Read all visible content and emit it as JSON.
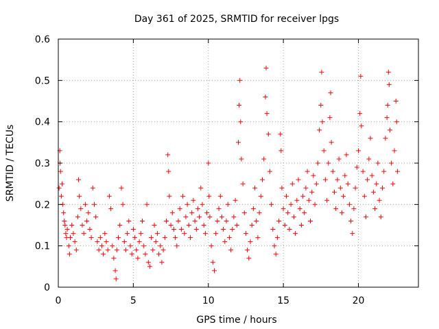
{
  "chart_data": {
    "type": "scatter",
    "title": "Day 361 of 2025, SRMTID for receiver lpgs",
    "xlabel": "GPS time / hours",
    "ylabel": "SRMTID / TECUs",
    "xlim": [
      0,
      24
    ],
    "ylim": [
      0,
      0.6
    ],
    "grid": true,
    "x_ticks": [
      0,
      5,
      10,
      15,
      20
    ],
    "y_ticks": [
      0,
      0.1,
      0.2,
      0.3,
      0.4,
      0.5,
      0.6
    ],
    "x_tick_labels": [
      "0",
      "5",
      "10",
      "15",
      "20"
    ],
    "y_tick_labels": [
      "0",
      "0.1",
      "0.2",
      "0.3",
      "0.4",
      "0.5",
      "0.6"
    ],
    "marker": "+",
    "marker_color": "#ff0000",
    "series": [
      {
        "name": "SRMTID",
        "points": [
          [
            0.05,
            0.24
          ],
          [
            0.1,
            0.33
          ],
          [
            0.12,
            0.3
          ],
          [
            0.15,
            0.28
          ],
          [
            0.2,
            0.22
          ],
          [
            0.25,
            0.25
          ],
          [
            0.3,
            0.2
          ],
          [
            0.35,
            0.18
          ],
          [
            0.4,
            0.16
          ],
          [
            0.45,
            0.15
          ],
          [
            0.5,
            0.13
          ],
          [
            0.55,
            0.12
          ],
          [
            0.6,
            0.14
          ],
          [
            0.7,
            0.1
          ],
          [
            0.75,
            0.08
          ],
          [
            0.8,
            0.12
          ],
          [
            0.9,
            0.15
          ],
          [
            1.0,
            0.13
          ],
          [
            1.1,
            0.11
          ],
          [
            1.2,
            0.09
          ],
          [
            1.3,
            0.17
          ],
          [
            1.35,
            0.26
          ],
          [
            1.4,
            0.22
          ],
          [
            1.5,
            0.19
          ],
          [
            1.6,
            0.15
          ],
          [
            1.7,
            0.13
          ],
          [
            1.8,
            0.2
          ],
          [
            1.9,
            0.16
          ],
          [
            2.0,
            0.18
          ],
          [
            2.1,
            0.14
          ],
          [
            2.2,
            0.12
          ],
          [
            2.3,
            0.24
          ],
          [
            2.4,
            0.2
          ],
          [
            2.5,
            0.17
          ],
          [
            2.6,
            0.11
          ],
          [
            2.7,
            0.09
          ],
          [
            2.8,
            0.12
          ],
          [
            2.9,
            0.1
          ],
          [
            3.0,
            0.08
          ],
          [
            3.1,
            0.13
          ],
          [
            3.2,
            0.11
          ],
          [
            3.3,
            0.09
          ],
          [
            3.4,
            0.22
          ],
          [
            3.5,
            0.19
          ],
          [
            3.6,
            0.1
          ],
          [
            3.7,
            0.07
          ],
          [
            3.8,
            0.04
          ],
          [
            3.85,
            0.02
          ],
          [
            3.9,
            0.09
          ],
          [
            4.0,
            0.12
          ],
          [
            4.1,
            0.15
          ],
          [
            4.2,
            0.24
          ],
          [
            4.3,
            0.2
          ],
          [
            4.4,
            0.11
          ],
          [
            4.5,
            0.09
          ],
          [
            4.6,
            0.13
          ],
          [
            4.7,
            0.16
          ],
          [
            4.8,
            0.1
          ],
          [
            4.9,
            0.08
          ],
          [
            5.0,
            0.14
          ],
          [
            5.1,
            0.12
          ],
          [
            5.2,
            0.09
          ],
          [
            5.3,
            0.07
          ],
          [
            5.4,
            0.11
          ],
          [
            5.5,
            0.13
          ],
          [
            5.6,
            0.16
          ],
          [
            5.7,
            0.1
          ],
          [
            5.8,
            0.08
          ],
          [
            5.9,
            0.2
          ],
          [
            6.0,
            0.06
          ],
          [
            6.1,
            0.05
          ],
          [
            6.2,
            0.12
          ],
          [
            6.3,
            0.09
          ],
          [
            6.4,
            0.15
          ],
          [
            6.5,
            0.11
          ],
          [
            6.6,
            0.13
          ],
          [
            6.7,
            0.08
          ],
          [
            6.8,
            0.1
          ],
          [
            6.9,
            0.06
          ],
          [
            7.0,
            0.09
          ],
          [
            7.1,
            0.12
          ],
          [
            7.2,
            0.16
          ],
          [
            7.3,
            0.32
          ],
          [
            7.35,
            0.28
          ],
          [
            7.4,
            0.22
          ],
          [
            7.5,
            0.15
          ],
          [
            7.6,
            0.18
          ],
          [
            7.7,
            0.14
          ],
          [
            7.8,
            0.12
          ],
          [
            7.9,
            0.1
          ],
          [
            8.0,
            0.16
          ],
          [
            8.1,
            0.19
          ],
          [
            8.2,
            0.14
          ],
          [
            8.3,
            0.22
          ],
          [
            8.4,
            0.13
          ],
          [
            8.5,
            0.17
          ],
          [
            8.6,
            0.2
          ],
          [
            8.7,
            0.15
          ],
          [
            8.8,
            0.12
          ],
          [
            8.9,
            0.18
          ],
          [
            9.0,
            0.21
          ],
          [
            9.1,
            0.16
          ],
          [
            9.2,
            0.14
          ],
          [
            9.3,
            0.19
          ],
          [
            9.4,
            0.17
          ],
          [
            9.5,
            0.24
          ],
          [
            9.6,
            0.2
          ],
          [
            9.7,
            0.15
          ],
          [
            9.8,
            0.13
          ],
          [
            9.9,
            0.18
          ],
          [
            10.0,
            0.3
          ],
          [
            10.05,
            0.22
          ],
          [
            10.1,
            0.17
          ],
          [
            10.2,
            0.1
          ],
          [
            10.3,
            0.06
          ],
          [
            10.4,
            0.04
          ],
          [
            10.5,
            0.13
          ],
          [
            10.6,
            0.16
          ],
          [
            10.7,
            0.19
          ],
          [
            10.8,
            0.22
          ],
          [
            10.9,
            0.17
          ],
          [
            11.0,
            0.14
          ],
          [
            11.1,
            0.11
          ],
          [
            11.2,
            0.16
          ],
          [
            11.3,
            0.2
          ],
          [
            11.4,
            0.12
          ],
          [
            11.5,
            0.09
          ],
          [
            11.6,
            0.14
          ],
          [
            11.7,
            0.17
          ],
          [
            11.8,
            0.21
          ],
          [
            11.9,
            0.15
          ],
          [
            12.0,
            0.35
          ],
          [
            12.05,
            0.44
          ],
          [
            12.1,
            0.5
          ],
          [
            12.15,
            0.4
          ],
          [
            12.2,
            0.31
          ],
          [
            12.3,
            0.25
          ],
          [
            12.4,
            0.18
          ],
          [
            12.5,
            0.13
          ],
          [
            12.6,
            0.09
          ],
          [
            12.7,
            0.07
          ],
          [
            12.8,
            0.11
          ],
          [
            12.9,
            0.15
          ],
          [
            13.0,
            0.19
          ],
          [
            13.1,
            0.24
          ],
          [
            13.2,
            0.16
          ],
          [
            13.3,
            0.12
          ],
          [
            13.4,
            0.18
          ],
          [
            13.5,
            0.22
          ],
          [
            13.6,
            0.26
          ],
          [
            13.7,
            0.31
          ],
          [
            13.8,
            0.46
          ],
          [
            13.85,
            0.53
          ],
          [
            13.9,
            0.42
          ],
          [
            14.0,
            0.37
          ],
          [
            14.1,
            0.28
          ],
          [
            14.2,
            0.2
          ],
          [
            14.3,
            0.14
          ],
          [
            14.4,
            0.1
          ],
          [
            14.5,
            0.08
          ],
          [
            14.6,
            0.12
          ],
          [
            14.7,
            0.16
          ],
          [
            14.8,
            0.37
          ],
          [
            14.85,
            0.33
          ],
          [
            14.9,
            0.24
          ],
          [
            15.0,
            0.19
          ],
          [
            15.1,
            0.15
          ],
          [
            15.2,
            0.22
          ],
          [
            15.3,
            0.18
          ],
          [
            15.4,
            0.14
          ],
          [
            15.5,
            0.2
          ],
          [
            15.6,
            0.25
          ],
          [
            15.7,
            0.17
          ],
          [
            15.8,
            0.13
          ],
          [
            15.9,
            0.21
          ],
          [
            16.0,
            0.26
          ],
          [
            16.1,
            0.19
          ],
          [
            16.2,
            0.15
          ],
          [
            16.3,
            0.22
          ],
          [
            16.4,
            0.18
          ],
          [
            16.5,
            0.24
          ],
          [
            16.6,
            0.28
          ],
          [
            16.7,
            0.21
          ],
          [
            16.8,
            0.16
          ],
          [
            16.9,
            0.23
          ],
          [
            17.0,
            0.27
          ],
          [
            17.1,
            0.2
          ],
          [
            17.2,
            0.25
          ],
          [
            17.3,
            0.3
          ],
          [
            17.4,
            0.38
          ],
          [
            17.5,
            0.44
          ],
          [
            17.55,
            0.52
          ],
          [
            17.6,
            0.4
          ],
          [
            17.7,
            0.33
          ],
          [
            17.8,
            0.26
          ],
          [
            17.9,
            0.21
          ],
          [
            18.0,
            0.3
          ],
          [
            18.1,
            0.41
          ],
          [
            18.15,
            0.47
          ],
          [
            18.2,
            0.35
          ],
          [
            18.3,
            0.28
          ],
          [
            18.4,
            0.23
          ],
          [
            18.5,
            0.19
          ],
          [
            18.6,
            0.26
          ],
          [
            18.7,
            0.31
          ],
          [
            18.8,
            0.24
          ],
          [
            18.9,
            0.18
          ],
          [
            19.0,
            0.22
          ],
          [
            19.1,
            0.27
          ],
          [
            19.2,
            0.32
          ],
          [
            19.3,
            0.25
          ],
          [
            19.4,
            0.2
          ],
          [
            19.5,
            0.16
          ],
          [
            19.6,
            0.13
          ],
          [
            19.7,
            0.19
          ],
          [
            19.8,
            0.24
          ],
          [
            19.9,
            0.29
          ],
          [
            20.0,
            0.33
          ],
          [
            20.1,
            0.42
          ],
          [
            20.15,
            0.51
          ],
          [
            20.2,
            0.39
          ],
          [
            20.3,
            0.28
          ],
          [
            20.4,
            0.22
          ],
          [
            20.5,
            0.17
          ],
          [
            20.6,
            0.26
          ],
          [
            20.7,
            0.31
          ],
          [
            20.8,
            0.36
          ],
          [
            20.9,
            0.27
          ],
          [
            21.0,
            0.23
          ],
          [
            21.1,
            0.19
          ],
          [
            21.2,
            0.25
          ],
          [
            21.3,
            0.3
          ],
          [
            21.4,
            0.21
          ],
          [
            21.5,
            0.17
          ],
          [
            21.6,
            0.24
          ],
          [
            21.7,
            0.28
          ],
          [
            21.8,
            0.36
          ],
          [
            21.9,
            0.41
          ],
          [
            21.95,
            0.44
          ],
          [
            22.0,
            0.52
          ],
          [
            22.05,
            0.49
          ],
          [
            22.1,
            0.38
          ],
          [
            22.2,
            0.3
          ],
          [
            22.3,
            0.25
          ],
          [
            22.4,
            0.33
          ],
          [
            22.5,
            0.45
          ],
          [
            22.55,
            0.4
          ],
          [
            22.6,
            0.28
          ]
        ]
      }
    ]
  }
}
